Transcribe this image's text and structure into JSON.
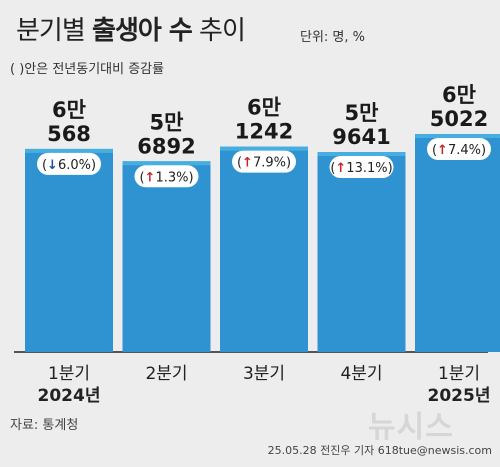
{
  "title_light": "분기별",
  "title_bold": "출생아 수",
  "title_rest": "추이",
  "unit": "단위: 명, %",
  "note": "( )안은 전년동기대비 증감률",
  "source": "자료: 통계청",
  "watermark": "뉴시스",
  "credit": "25.05.28 전진우 기자 618tue@newsis.com",
  "colors": {
    "bar": "#2f93d1",
    "bar_top": "#47aee0",
    "up_arrow": "#c0282d",
    "down_arrow": "#1f4e9a",
    "pill_bg": "#ffffff"
  },
  "chart_data": {
    "type": "bar",
    "categories": [
      "1분기",
      "2분기",
      "3분기",
      "4분기",
      "1분기"
    ],
    "years": [
      "2024년",
      "",
      "",
      "",
      "2025년"
    ],
    "values": [
      60568,
      56892,
      61242,
      59641,
      65022
    ],
    "value_labels": [
      [
        "6만",
        "568"
      ],
      [
        "5만",
        "6892"
      ],
      [
        "6만",
        "1242"
      ],
      [
        "5만",
        "9641"
      ],
      [
        "6만",
        "5022"
      ]
    ],
    "changes": [
      -6.0,
      1.3,
      7.9,
      13.1,
      7.4
    ],
    "change_labels": [
      "6.0%",
      "1.3%",
      "7.9%",
      "13.1%",
      "7.4%"
    ],
    "directions": [
      "down",
      "up",
      "up",
      "up",
      "up"
    ],
    "ylim": [
      0,
      70000
    ]
  }
}
